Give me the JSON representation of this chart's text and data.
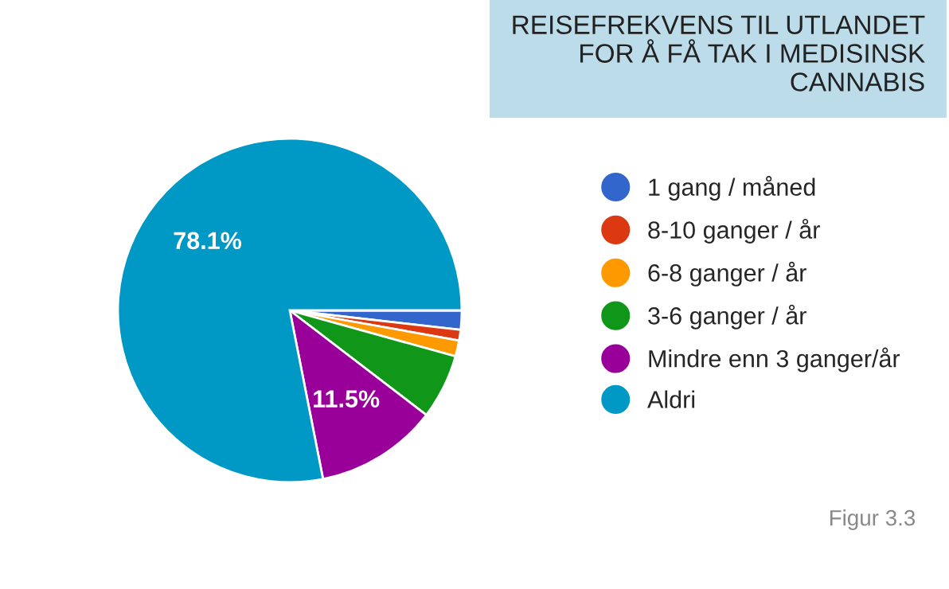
{
  "chart_data": {
    "type": "pie",
    "title": "REISEFREKVENS TIL UTLANDET\nFOR Å FÅ TAK I MEDISINSK\nCANNABIS",
    "categories": [
      "1 gang / måned",
      "8-10 ganger / år",
      "6-8 ganger / år",
      "3-6 ganger / år",
      "Mindre enn 3 ganger/år",
      "Aldri"
    ],
    "values": [
      1.8,
      1.0,
      1.5,
      6.1,
      11.5,
      78.1
    ],
    "colors": [
      "#3366cc",
      "#dc3912",
      "#ff9900",
      "#109618",
      "#990099",
      "#0099c6"
    ],
    "value_labels": [
      null,
      null,
      null,
      null,
      "11.5%",
      "78.1%"
    ],
    "legend": "right",
    "annotations": [
      "Figur 3.3"
    ]
  }
}
